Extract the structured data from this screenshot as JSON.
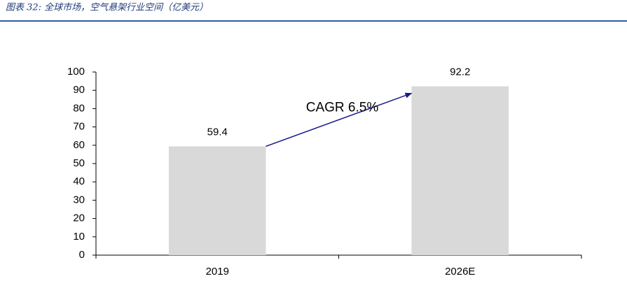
{
  "chart_data": {
    "type": "bar",
    "title": "图表 32: 全球市场，空气悬架行业空间（亿美元）",
    "categories": [
      "2019",
      "2026E"
    ],
    "values": [
      59.4,
      92.2
    ],
    "color": "#d9d9d9",
    "ylim": [
      0,
      100
    ],
    "yticks": [
      0,
      10,
      20,
      30,
      40,
      50,
      60,
      70,
      80,
      90,
      100
    ],
    "annotation": "CAGR 6.5%",
    "annotation_color": "#1a1a8c",
    "grid": false
  }
}
